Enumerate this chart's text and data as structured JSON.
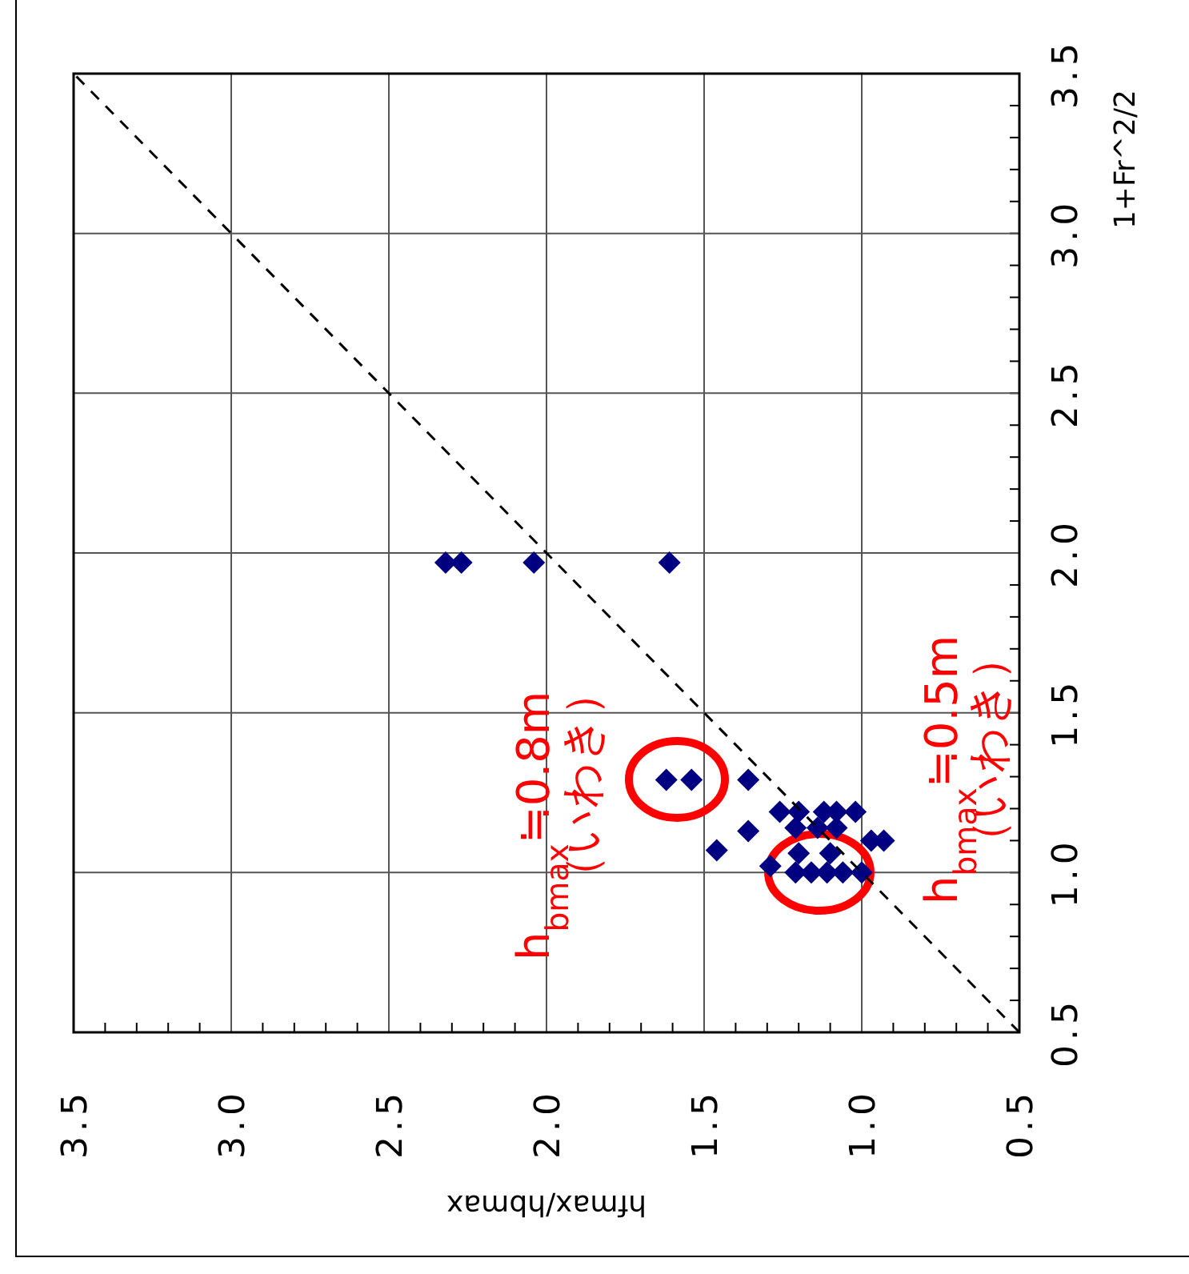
{
  "chart_data": {
    "type": "scatter",
    "xlabel": "hfmax/hbmax",
    "ylabel": "1+Fr^2/2",
    "xlim": [
      3.5,
      0.5
    ],
    "ylim": [
      0.5,
      3.5
    ],
    "xticks": [
      {
        "value": 3.5,
        "label": "3.5"
      },
      {
        "value": 3.0,
        "label": "3.0"
      },
      {
        "value": 2.5,
        "label": "2.5"
      },
      {
        "value": 2.0,
        "label": "2.0"
      },
      {
        "value": 1.5,
        "label": "1.5"
      },
      {
        "value": 1.0,
        "label": "1.0"
      },
      {
        "value": 0.5,
        "label": "0.5"
      }
    ],
    "yticks": [
      {
        "value": 0.5,
        "label": "0.5"
      },
      {
        "value": 1.0,
        "label": "1.0"
      },
      {
        "value": 1.5,
        "label": "1.5"
      },
      {
        "value": 2.0,
        "label": "2.0"
      },
      {
        "value": 2.5,
        "label": "2.5"
      },
      {
        "value": 3.0,
        "label": "3.0"
      },
      {
        "value": 3.5,
        "label": "3.5"
      }
    ],
    "grid": true,
    "series": [
      {
        "color": "#000080",
        "marker": "diamond",
        "x": [
          2.32,
          2.27,
          2.04,
          1.61,
          1.62,
          1.54,
          1.36,
          1.46,
          1.36,
          1.26,
          1.2,
          1.12,
          1.08,
          1.02,
          1.29,
          1.21,
          1.2,
          1.14,
          1.08,
          1.1,
          0.97,
          0.93,
          1.21,
          1.16,
          1.11,
          1.06,
          1.0
        ],
        "values": [
          1.97,
          1.97,
          1.97,
          1.97,
          1.29,
          1.29,
          1.29,
          1.07,
          1.13,
          1.19,
          1.19,
          1.19,
          1.19,
          1.19,
          1.02,
          1.14,
          1.06,
          1.14,
          1.14,
          1.06,
          1.1,
          1.1,
          1.0,
          1.0,
          1.0,
          1.0,
          1.0
        ]
      },
      {
        "type": "line",
        "color": "#000000",
        "marker": "none",
        "line_style": "dashed",
        "x": [
          0.5,
          3.5
        ],
        "values": [
          0.5,
          3.5
        ]
      }
    ],
    "annotations": [
      "h$_{bmax}$≒0.8m",
      "（いわき）",
      "h$_{bmax}$≒0.5m",
      "（いわき）"
    ]
  }
}
